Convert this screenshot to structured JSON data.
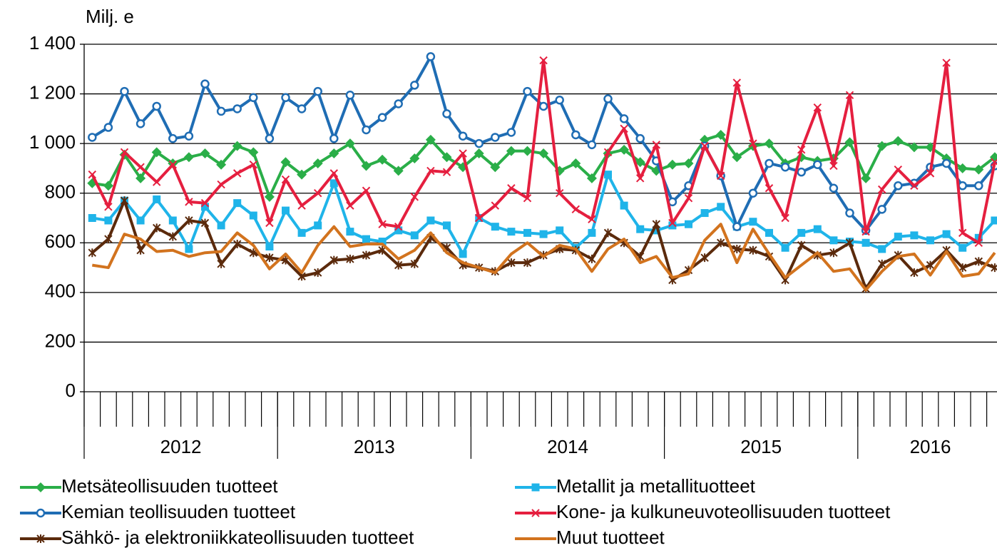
{
  "chart_data": {
    "type": "line",
    "y_axis_label": "Milj. e",
    "categories": [
      null,
      null,
      null,
      null,
      null,
      null,
      null,
      null,
      null,
      null,
      null,
      null,
      null,
      null,
      null,
      null,
      null,
      null,
      null,
      null,
      null,
      null,
      null,
      null,
      null,
      null,
      null,
      null,
      null,
      null,
      null,
      null,
      null,
      null,
      null,
      null,
      null,
      null,
      null,
      null,
      null,
      null,
      null,
      null,
      null,
      null,
      null,
      null,
      null,
      null,
      null,
      null,
      null,
      null,
      null,
      null,
      null
    ],
    "groups": [
      {
        "label": "2012",
        "count": 12
      },
      {
        "label": "2013",
        "count": 12
      },
      {
        "label": "2014",
        "count": 12
      },
      {
        "label": "2015",
        "count": 12
      },
      {
        "label": "2016",
        "count": 9
      }
    ],
    "ylim": [
      0,
      1400
    ],
    "yticks": [
      0,
      200,
      400,
      600,
      800,
      {
        "value": 1000,
        "label": "1 000"
      },
      {
        "value": 1200,
        "label": "1 200"
      },
      {
        "value": 1400,
        "label": "1 400"
      }
    ],
    "grid": true,
    "legend": "bottom",
    "series": [
      {
        "name": "Metsäteollisuuden tuotteet",
        "color": "#2aae48",
        "marker": "diamond",
        "values": [
          840,
          830,
          955,
          860,
          965,
          920,
          945,
          960,
          915,
          990,
          965,
          785,
          925,
          875,
          920,
          960,
          1000,
          910,
          935,
          890,
          940,
          1015,
          945,
          905,
          960,
          905,
          970,
          970,
          960,
          890,
          920,
          860,
          960,
          975,
          925,
          890,
          915,
          920,
          1015,
          1035,
          945,
          990,
          1000,
          920,
          945,
          930,
          940,
          1005,
          860,
          990,
          1010,
          985,
          985,
          940,
          900,
          895,
          945
        ]
      },
      {
        "name": "Metallit ja metallituotteet",
        "color": "#1fb4e9",
        "marker": "square",
        "values": [
          700,
          690,
          770,
          690,
          775,
          690,
          575,
          745,
          670,
          760,
          710,
          585,
          730,
          640,
          670,
          840,
          645,
          615,
          605,
          650,
          630,
          690,
          670,
          555,
          700,
          665,
          645,
          640,
          635,
          650,
          580,
          640,
          875,
          750,
          655,
          650,
          670,
          675,
          720,
          745,
          665,
          685,
          640,
          580,
          640,
          655,
          610,
          605,
          600,
          575,
          625,
          630,
          610,
          635,
          580,
          620,
          690
        ]
      },
      {
        "name": "Kemian teollisuuden tuotteet",
        "color": "#1f6db4",
        "marker": "circle",
        "values": [
          1025,
          1065,
          1210,
          1080,
          1150,
          1020,
          1030,
          1240,
          1130,
          1140,
          1185,
          1020,
          1185,
          1140,
          1210,
          1020,
          1195,
          1055,
          1105,
          1160,
          1235,
          1350,
          1120,
          1030,
          1000,
          1025,
          1045,
          1210,
          1150,
          1175,
          1035,
          995,
          1180,
          1100,
          1020,
          930,
          765,
          830,
          990,
          870,
          665,
          800,
          920,
          905,
          885,
          915,
          820,
          720,
          650,
          735,
          830,
          840,
          905,
          920,
          830,
          830,
          910
        ]
      },
      {
        "name": "Kone- ja kulkuneuvoteollisuuden tuotteet",
        "color": "#e51f3f",
        "marker": "x",
        "values": [
          875,
          745,
          965,
          905,
          845,
          915,
          765,
          760,
          835,
          880,
          915,
          680,
          855,
          750,
          800,
          880,
          750,
          810,
          675,
          665,
          785,
          890,
          885,
          960,
          700,
          750,
          820,
          780,
          1335,
          800,
          735,
          695,
          965,
          1060,
          860,
          995,
          680,
          780,
          990,
          870,
          1245,
          1000,
          820,
          700,
          975,
          1145,
          910,
          1195,
          645,
          815,
          895,
          830,
          880,
          1325,
          640,
          600,
          925
        ]
      },
      {
        "name": "Sähkö- ja elektroniikkateollisuuden tuotteet",
        "color": "#5b2a0c",
        "marker": "star",
        "values": [
          560,
          615,
          770,
          570,
          660,
          625,
          690,
          680,
          515,
          595,
          560,
          540,
          530,
          465,
          480,
          530,
          535,
          550,
          570,
          510,
          515,
          620,
          580,
          510,
          500,
          485,
          520,
          520,
          550,
          575,
          570,
          535,
          640,
          600,
          545,
          675,
          450,
          490,
          540,
          600,
          575,
          570,
          545,
          450,
          590,
          550,
          560,
          600,
          415,
          515,
          550,
          480,
          510,
          570,
          500,
          525,
          500
        ]
      },
      {
        "name": "Muut tuotteet",
        "color": "#d2731e",
        "marker": "none",
        "values": [
          510,
          500,
          635,
          615,
          565,
          570,
          545,
          560,
          565,
          640,
          590,
          495,
          555,
          480,
          590,
          665,
          585,
          595,
          595,
          535,
          570,
          640,
          560,
          520,
          500,
          480,
          555,
          600,
          545,
          590,
          575,
          485,
          575,
          615,
          520,
          545,
          460,
          475,
          610,
          675,
          520,
          655,
          555,
          460,
          510,
          560,
          485,
          495,
          410,
          485,
          545,
          555,
          470,
          565,
          465,
          475,
          560
        ]
      }
    ]
  }
}
